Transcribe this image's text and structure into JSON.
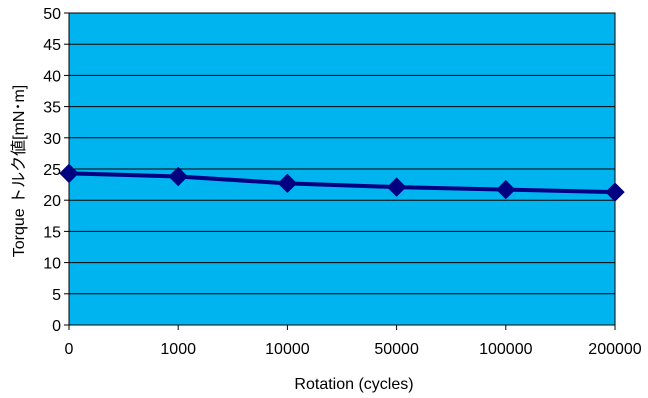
{
  "chart_data": {
    "type": "line",
    "title": "",
    "xlabel": "Rotation (cycles)",
    "ylabel": "Torque トルク値[mN･m]",
    "categories": [
      "0",
      "1000",
      "10000",
      "50000",
      "100000",
      "200000"
    ],
    "series": [
      {
        "values": [
          24.3,
          23.8,
          22.7,
          22.1,
          21.7,
          21.3
        ],
        "color": "#000080",
        "marker": "diamond"
      }
    ],
    "ylim": [
      0,
      50
    ],
    "yticks": [
      0,
      5,
      10,
      15,
      20,
      25,
      30,
      35,
      40,
      45,
      50
    ],
    "grid": true,
    "legend": "none",
    "plot_background": "#00B4F0",
    "gridline_color": "#000000"
  }
}
